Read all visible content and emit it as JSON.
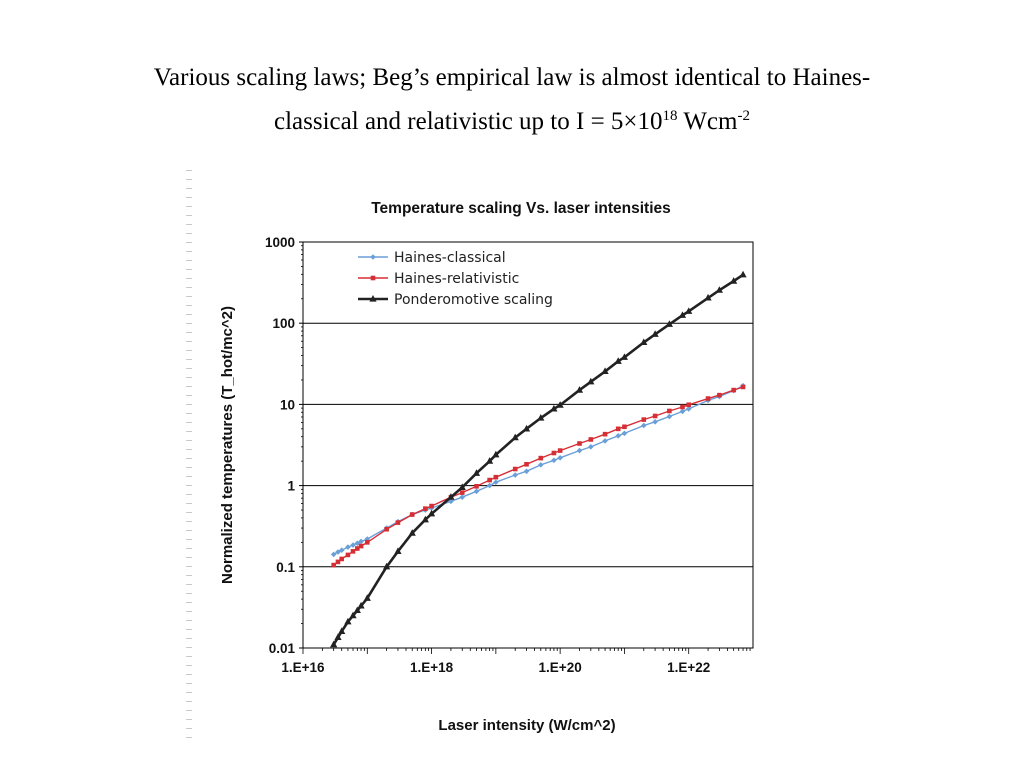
{
  "slide": {
    "title_line1": "Various scaling laws; Beg’s empirical law is almost identical to Haines-",
    "title_line2_pre": "classical and relativistic up to I = 5×10",
    "title_line2_exp": "18",
    "title_line2_mid": " Wcm",
    "title_line2_exp2": "-2"
  },
  "chart_data": {
    "type": "line",
    "title": "Temperature scaling Vs. laser intensities",
    "xlabel": "Laser intensity (W/cm^2)",
    "ylabel": "Normalized temperatures (T_hot/mc^2)",
    "x_scale": "log",
    "y_scale": "log",
    "xlim": [
      1e+16,
      1e+23
    ],
    "ylim": [
      0.01,
      1000
    ],
    "x_ticks": [
      1e+16,
      1e+18,
      1e+20,
      1e+22
    ],
    "x_tick_labels": [
      "1.E+16",
      "1.E+18",
      "1.E+20",
      "1.E+22"
    ],
    "y_ticks": [
      0.01,
      0.1,
      1,
      10,
      100,
      1000
    ],
    "y_tick_labels": [
      "0.01",
      "0.1",
      "1",
      "10",
      "100",
      "1000"
    ],
    "grid": "horizontal major lines",
    "legend_position": "top-left",
    "series": [
      {
        "name": "Haines-classical",
        "color": "#6a9fd8",
        "marker": "diamond",
        "x": [
          3e+16,
          3.5e+16,
          4e+16,
          5e+16,
          6e+16,
          7e+16,
          8e+16,
          1e+17,
          2e+17,
          3e+17,
          5e+17,
          8e+17,
          1e+18,
          2e+18,
          3e+18,
          5e+18,
          8e+18,
          1e+19,
          2e+19,
          3e+19,
          5e+19,
          8e+19,
          1e+20,
          2e+20,
          3e+20,
          5e+20,
          8e+20,
          1e+21,
          2e+21,
          3e+21,
          5e+21,
          8e+21,
          1e+22,
          2e+22,
          3e+22,
          5e+22,
          7e+22
        ],
        "y": [
          0.142,
          0.152,
          0.16,
          0.175,
          0.185,
          0.195,
          0.205,
          0.22,
          0.3,
          0.36,
          0.44,
          0.5,
          0.53,
          0.64,
          0.72,
          0.85,
          1.0,
          1.1,
          1.35,
          1.5,
          1.8,
          2.05,
          2.2,
          2.7,
          3.0,
          3.55,
          4.1,
          4.4,
          5.5,
          6.1,
          7.1,
          8.2,
          8.8,
          11.2,
          12.5,
          14.8,
          17.0
        ]
      },
      {
        "name": "Haines-relativistic",
        "color": "#d62e35",
        "marker": "square",
        "x": [
          3e+16,
          3.5e+16,
          4e+16,
          5e+16,
          6e+16,
          7e+16,
          8e+16,
          1e+17,
          2e+17,
          3e+17,
          5e+17,
          8e+17,
          1e+18,
          2e+18,
          3e+18,
          5e+18,
          8e+18,
          1e+19,
          2e+19,
          3e+19,
          5e+19,
          8e+19,
          1e+20,
          2e+20,
          3e+20,
          5e+20,
          8e+20,
          1e+21,
          2e+21,
          3e+21,
          5e+21,
          8e+21,
          1e+22,
          2e+22,
          3e+22,
          5e+22,
          7e+22
        ],
        "y": [
          0.105,
          0.115,
          0.125,
          0.14,
          0.155,
          0.168,
          0.18,
          0.2,
          0.29,
          0.35,
          0.44,
          0.52,
          0.56,
          0.72,
          0.82,
          0.98,
          1.17,
          1.27,
          1.6,
          1.83,
          2.18,
          2.52,
          2.7,
          3.3,
          3.7,
          4.3,
          5.0,
          5.3,
          6.5,
          7.2,
          8.3,
          9.3,
          9.9,
          11.8,
          13.0,
          15.0,
          16.4
        ]
      },
      {
        "name": "Ponderomotive scaling",
        "color": "#222222",
        "marker": "triangle",
        "x": [
          3e+16,
          3.5e+16,
          4e+16,
          5e+16,
          6e+16,
          7e+16,
          8e+16,
          1e+17,
          2e+17,
          3e+17,
          5e+17,
          8e+17,
          1e+18,
          2e+18,
          3e+18,
          5e+18,
          8e+18,
          1e+19,
          2e+19,
          3e+19,
          5e+19,
          8e+19,
          1e+20,
          2e+20,
          3e+20,
          5e+20,
          8e+20,
          1e+21,
          2e+21,
          3e+21,
          5e+21,
          8e+21,
          1e+22,
          2e+22,
          3e+22,
          5e+22,
          7e+22
        ],
        "y": [
          0.011,
          0.0135,
          0.016,
          0.021,
          0.025,
          0.029,
          0.033,
          0.041,
          0.1,
          0.155,
          0.26,
          0.38,
          0.45,
          0.72,
          0.95,
          1.42,
          2.0,
          2.4,
          3.9,
          5.0,
          6.8,
          8.8,
          9.8,
          15.0,
          19.0,
          25.5,
          34.0,
          38.0,
          58.0,
          73.0,
          97.0,
          125.0,
          140.0,
          205.0,
          255.0,
          330.0,
          395.0
        ]
      }
    ]
  }
}
